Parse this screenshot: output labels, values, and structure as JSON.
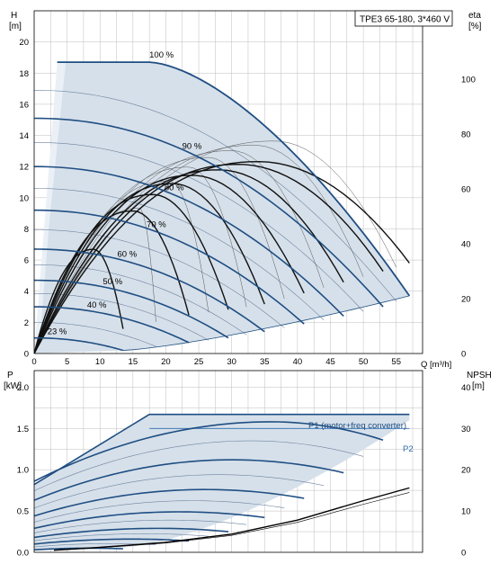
{
  "colors": {
    "area": "#d6e0ea",
    "area_light": "#eaf0f6",
    "curve": "#1f4e82",
    "thin": "#555555",
    "grid": "#bdbdbd",
    "eff": "#111111",
    "p2": "#2d6ab0"
  },
  "chart_data": [
    {
      "type": "line",
      "title": "TPE3 65-180, 3*460 V",
      "xlabel": "Q [m³/h]",
      "ylabel": "H\n[m]",
      "y2label": "eta\n[%]",
      "xlim": [
        0,
        59
      ],
      "ylim": [
        0,
        22
      ],
      "y2lim": [
        0,
        125
      ],
      "xticks": [
        0,
        5,
        10,
        15,
        20,
        25,
        30,
        35,
        40,
        45,
        50,
        55
      ],
      "yticks": [
        0,
        2,
        4,
        6,
        8,
        10,
        12,
        14,
        16,
        18,
        20
      ],
      "y2ticks": [
        0,
        20,
        40,
        60,
        80,
        100
      ],
      "grid": true,
      "speed_curves": [
        {
          "name": "100 %",
          "shutoff_h": 18.7,
          "flat_to_q": 17.5,
          "end": [
            57.0,
            3.7
          ]
        },
        {
          "name": "90 %",
          "shutoff_h": 15.1,
          "end": [
            53.0,
            3.0
          ]
        },
        {
          "name": "80 %",
          "shutoff_h": 12.0,
          "end": [
            47.0,
            2.4
          ]
        },
        {
          "name": "70 %",
          "shutoff_h": 9.2,
          "end": [
            41.0,
            1.9
          ]
        },
        {
          "name": "60 %",
          "shutoff_h": 6.7,
          "end": [
            35.0,
            1.4
          ]
        },
        {
          "name": "50 %",
          "shutoff_h": 4.7,
          "end": [
            29.5,
            1.0
          ]
        },
        {
          "name": "40 %",
          "shutoff_h": 3.0,
          "end": [
            23.5,
            0.7
          ]
        },
        {
          "name": "23 %",
          "shutoff_h": 1.0,
          "end": [
            13.5,
            0.2
          ]
        }
      ],
      "efficiency_curves": [
        {
          "q_end": 57.0,
          "eta_end": 33,
          "q_peak": 34,
          "eta_peak": 70
        },
        {
          "q_end": 53.0,
          "eta_end": 30,
          "q_peak": 31,
          "eta_peak": 69
        },
        {
          "q_end": 47.0,
          "eta_end": 26,
          "q_peak": 28,
          "eta_peak": 67
        },
        {
          "q_end": 41.0,
          "eta_end": 22,
          "q_peak": 24,
          "eta_peak": 65
        },
        {
          "q_end": 35.0,
          "eta_end": 18,
          "q_peak": 21,
          "eta_peak": 62
        },
        {
          "q_end": 29.5,
          "eta_end": 16,
          "q_peak": 18,
          "eta_peak": 58
        },
        {
          "q_end": 23.5,
          "eta_end": 14,
          "q_peak": 15,
          "eta_peak": 52
        },
        {
          "q_end": 13.5,
          "eta_end": 9,
          "q_peak": 9,
          "eta_peak": 38
        }
      ]
    },
    {
      "type": "line",
      "xlabel": "",
      "ylabel": "P\n[kW]",
      "y2label": "NPSH\n[m]",
      "xlim": [
        0,
        59
      ],
      "ylim": [
        0,
        2.2
      ],
      "y2lim": [
        0,
        44
      ],
      "yticks": [
        0.0,
        0.5,
        1.0,
        1.5,
        2.0
      ],
      "y2ticks": [
        0,
        10,
        20,
        30,
        40
      ],
      "grid": true,
      "legend": [
        "P1 (motor+freq converter)",
        "P2"
      ],
      "p1_max": 1.67,
      "p2_max": 1.5,
      "power_curves": [
        {
          "p0": 0.86,
          "pmax": 1.58,
          "q_peak": 36,
          "q_end": 53
        },
        {
          "p0": 0.63,
          "pmax": 1.12,
          "q_peak": 30,
          "q_end": 47
        },
        {
          "p0": 0.44,
          "pmax": 0.76,
          "q_peak": 26,
          "q_end": 41
        },
        {
          "p0": 0.29,
          "pmax": 0.49,
          "q_peak": 22,
          "q_end": 35
        },
        {
          "p0": 0.18,
          "pmax": 0.29,
          "q_peak": 19,
          "q_end": 29.5
        },
        {
          "p0": 0.1,
          "pmax": 0.16,
          "q_peak": 15,
          "q_end": 23.5
        },
        {
          "p0": 0.03,
          "pmax": 0.05,
          "q_peak": 8,
          "q_end": 13.5
        }
      ],
      "npsh": [
        [
          3,
          0.5
        ],
        [
          10,
          1.2
        ],
        [
          20,
          2.4
        ],
        [
          30,
          4.4
        ],
        [
          40,
          7.8
        ],
        [
          50,
          12.5
        ],
        [
          57,
          15.6
        ]
      ]
    }
  ]
}
